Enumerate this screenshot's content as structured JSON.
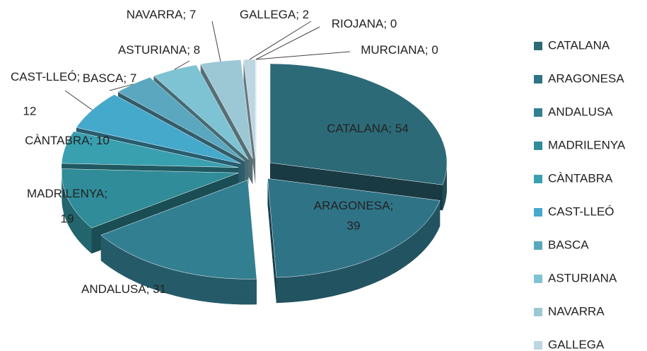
{
  "chart_data": {
    "type": "pie",
    "categories": [
      "CATALANA",
      "ARAGONESA",
      "ANDALUSA",
      "MADRILENYA",
      "CÀNTABRA",
      "CAST-LLEÓ",
      "BASCA",
      "ASTURIANA",
      "NAVARRA",
      "GALLEGA",
      "RIOJANA",
      "MURCIANA"
    ],
    "values": [
      54,
      39,
      31,
      19,
      10,
      12,
      7,
      8,
      7,
      2,
      0,
      0
    ],
    "colors": [
      "#2d6a78",
      "#2f7387",
      "#337f92",
      "#2f8c98",
      "#39a0b0",
      "#45a9cc",
      "#5aa7bf",
      "#7ec3d3",
      "#9cc8d6",
      "#bcd6e2",
      "#c8dce6",
      "#d0e0ea"
    ],
    "label_separator": "; "
  }
}
